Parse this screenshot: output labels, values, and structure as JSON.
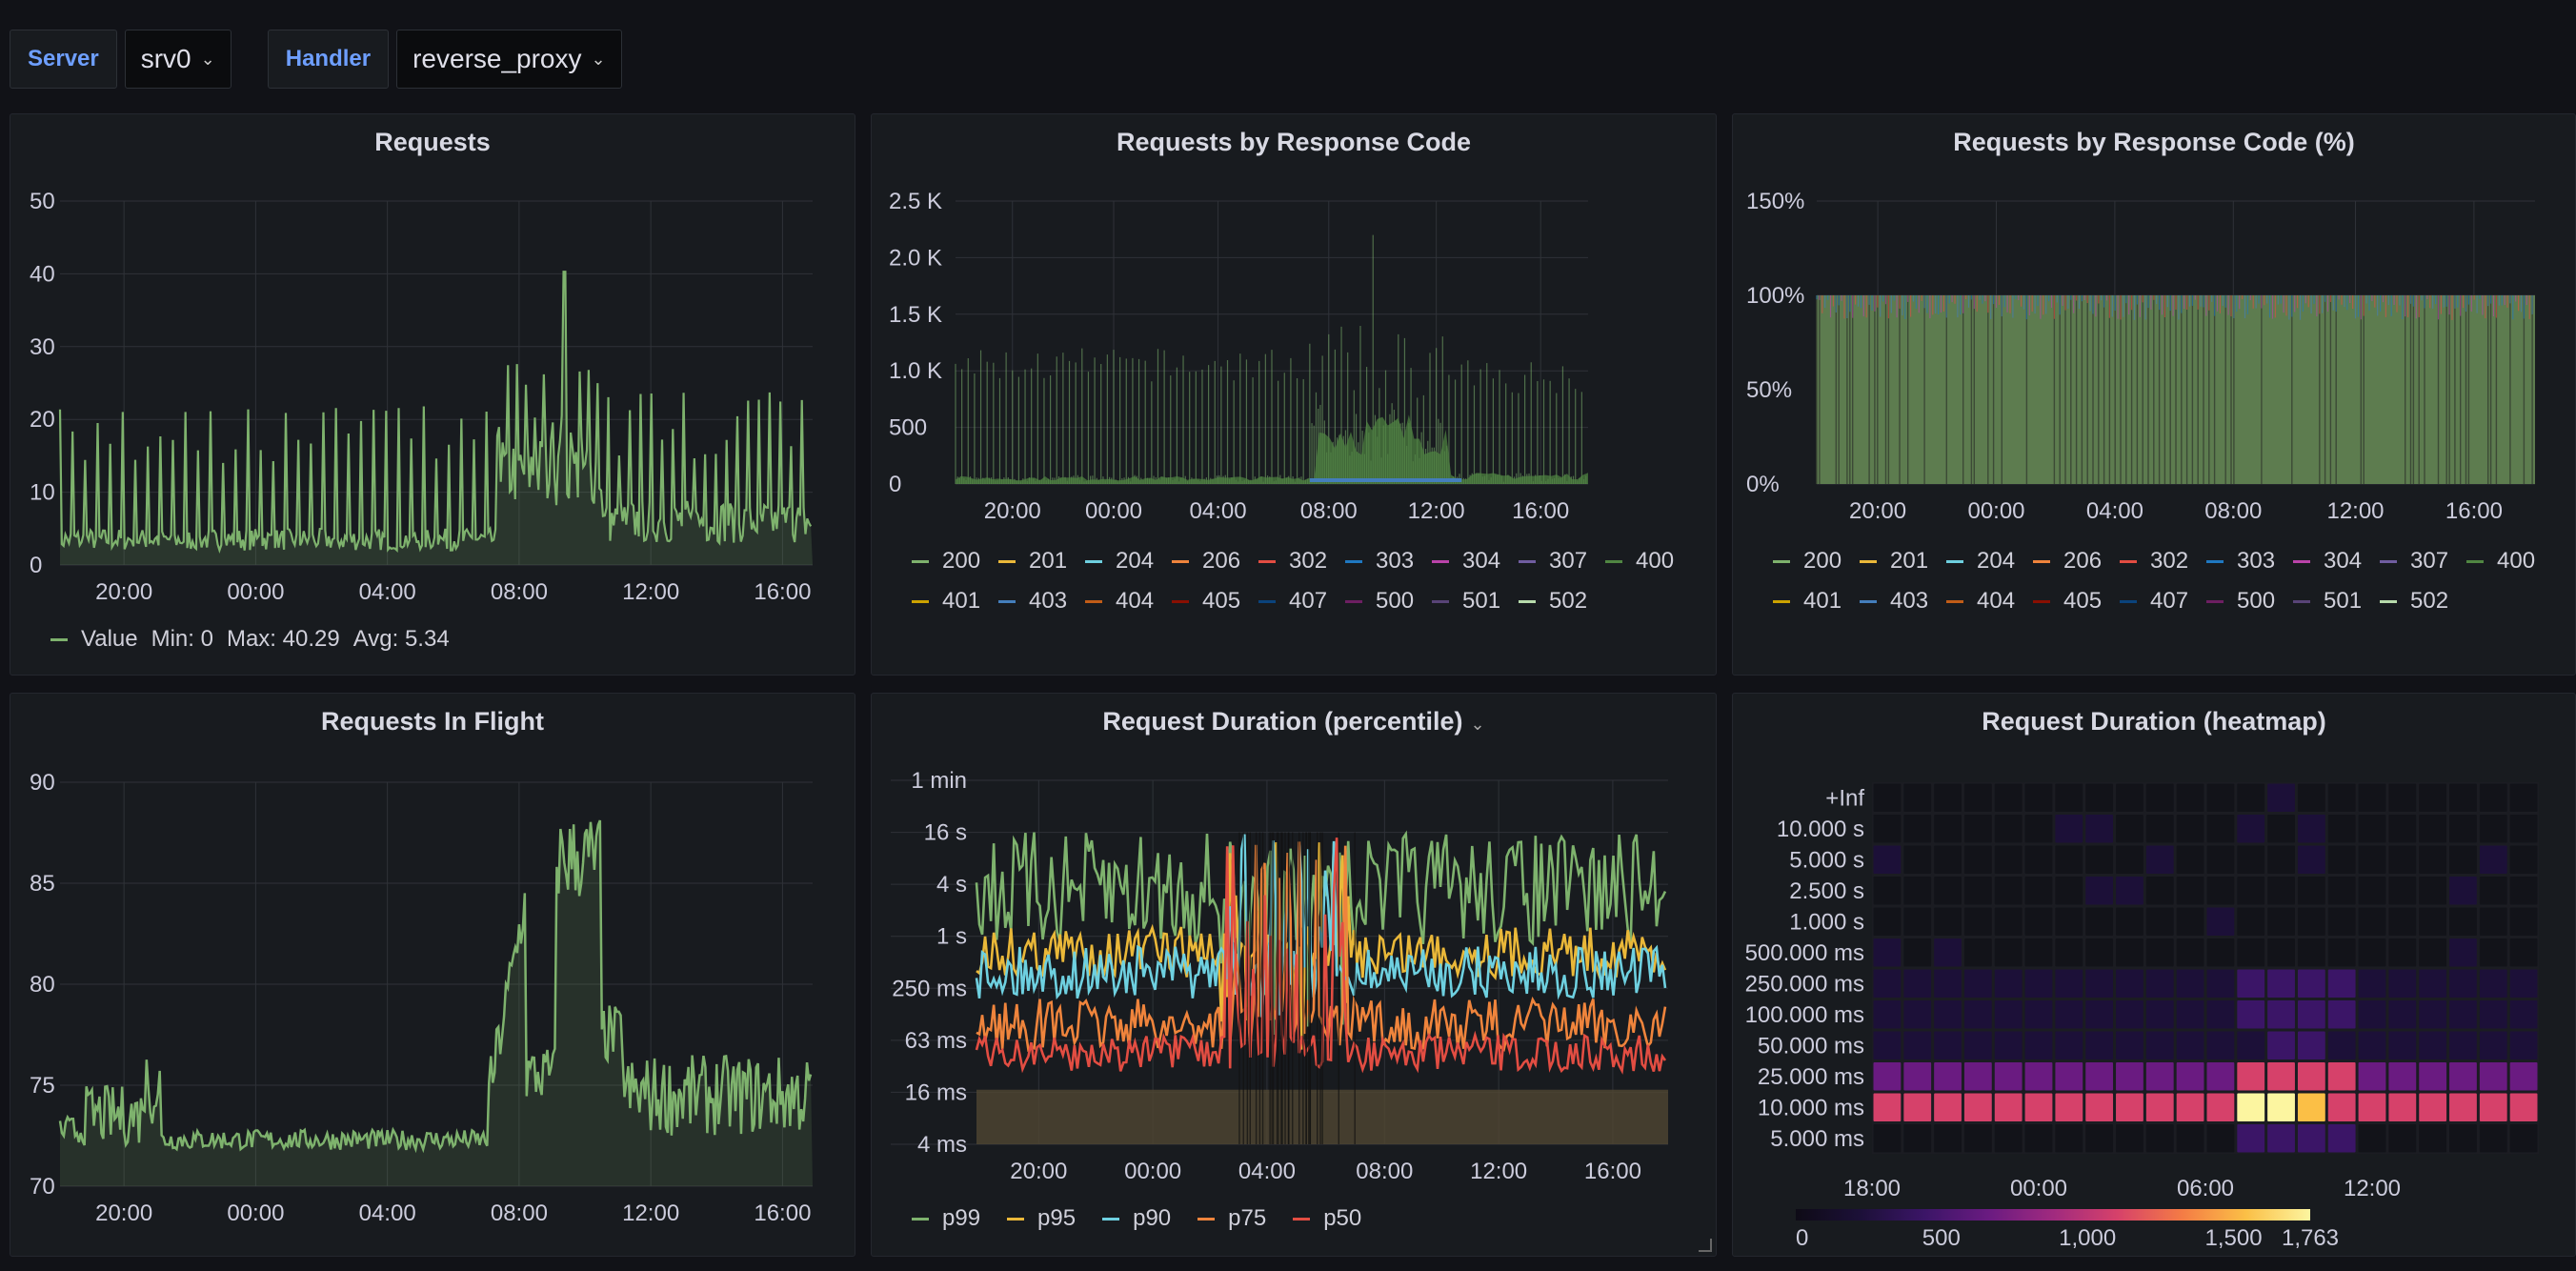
{
  "variables": [
    {
      "label": "Server",
      "value": "srv0"
    },
    {
      "label": "Handler",
      "value": "reverse_proxy"
    }
  ],
  "colors": {
    "green": "#7eb26d",
    "yellow": "#eab839",
    "cyan": "#6ed0e0",
    "orange": "#ef843c",
    "red": "#e24d42",
    "blue": "#1f78c1",
    "purple": "#ba43a9",
    "violet": "#705da0",
    "darkgreen": "#508642",
    "darkyellow": "#cca300",
    "darkblue": "#447ebc",
    "darkorange": "#c15c17",
    "darkred": "#890f02",
    "navy": "#0a437c",
    "magenta": "#6d1f62",
    "slate": "#584477"
  },
  "panels": {
    "requests": {
      "title": "Requests",
      "y_ticks": [
        "50",
        "40",
        "30",
        "20",
        "10",
        "0"
      ],
      "x_ticks": [
        "20:00",
        "00:00",
        "04:00",
        "08:00",
        "12:00",
        "16:00"
      ],
      "legend": {
        "name": "Value",
        "min": "Min: 0",
        "max": "Max: 40.29",
        "avg": "Avg: 5.34"
      }
    },
    "by_code": {
      "title": "Requests by Response Code",
      "y_ticks": [
        "2.5 K",
        "2.0 K",
        "1.5 K",
        "1.0 K",
        "500",
        "0"
      ],
      "x_ticks": [
        "20:00",
        "00:00",
        "04:00",
        "08:00",
        "12:00",
        "16:00"
      ]
    },
    "by_code_pct": {
      "title": "Requests by Response Code (%)",
      "y_ticks": [
        "150%",
        "100%",
        "50%",
        "0%"
      ],
      "x_ticks": [
        "20:00",
        "00:00",
        "04:00",
        "08:00",
        "12:00",
        "16:00"
      ]
    },
    "in_flight": {
      "title": "Requests In Flight",
      "y_ticks": [
        "90",
        "85",
        "80",
        "75",
        "70"
      ],
      "x_ticks": [
        "20:00",
        "00:00",
        "04:00",
        "08:00",
        "12:00",
        "16:00"
      ]
    },
    "duration_pct": {
      "title": "Request Duration (percentile)",
      "y_ticks": [
        "1 min",
        "16 s",
        "4 s",
        "1 s",
        "250 ms",
        "63 ms",
        "16 ms",
        "4 ms"
      ],
      "x_ticks": [
        "20:00",
        "00:00",
        "04:00",
        "08:00",
        "12:00",
        "16:00"
      ],
      "legend": [
        "p99",
        "p95",
        "p90",
        "p75",
        "p50"
      ]
    },
    "heatmap": {
      "title": "Request Duration (heatmap)",
      "y_ticks": [
        "+Inf",
        "10.000 s",
        "5.000 s",
        "2.500 s",
        "1.000 s",
        "500.000 ms",
        "250.000 ms",
        "100.000 ms",
        "50.000 ms",
        "25.000 ms",
        "10.000 ms",
        "5.000 ms"
      ],
      "x_ticks": [
        "18:00",
        "00:00",
        "06:00",
        "12:00"
      ],
      "scale": [
        "0",
        "500",
        "1,000",
        "1,500",
        "1,763"
      ]
    }
  },
  "code_legend": [
    {
      "code": "200",
      "color": "#7eb26d"
    },
    {
      "code": "201",
      "color": "#eab839"
    },
    {
      "code": "204",
      "color": "#6ed0e0"
    },
    {
      "code": "206",
      "color": "#ef843c"
    },
    {
      "code": "302",
      "color": "#e24d42"
    },
    {
      "code": "303",
      "color": "#1f78c1"
    },
    {
      "code": "304",
      "color": "#ba43a9"
    },
    {
      "code": "307",
      "color": "#705da0"
    },
    {
      "code": "400",
      "color": "#508642"
    },
    {
      "code": "401",
      "color": "#cca300"
    },
    {
      "code": "403",
      "color": "#447ebc"
    },
    {
      "code": "404",
      "color": "#c15c17"
    },
    {
      "code": "405",
      "color": "#890f02"
    },
    {
      "code": "407",
      "color": "#0a437c"
    },
    {
      "code": "500",
      "color": "#6d1f62"
    },
    {
      "code": "501",
      "color": "#584477"
    },
    {
      "code": "502",
      "color": "#b7dbab"
    }
  ]
}
